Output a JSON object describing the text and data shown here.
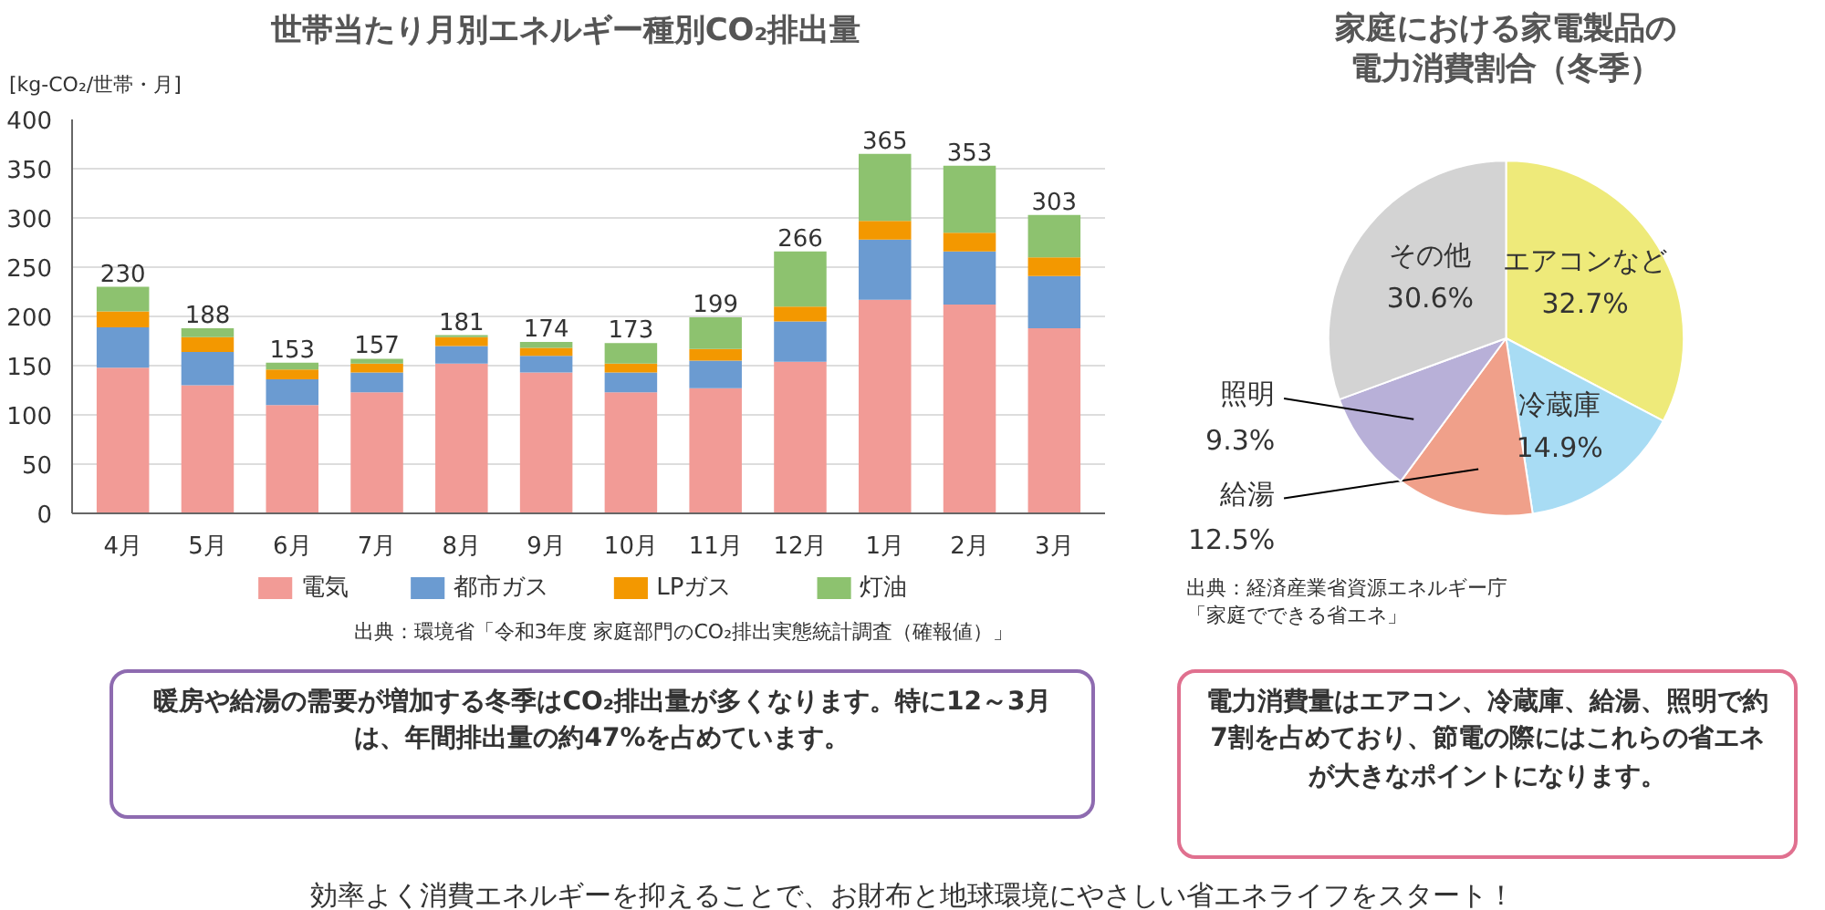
{
  "chart_data": [
    {
      "type": "bar",
      "title": "世帯当たり月別エネルギー種別CO₂排出量",
      "ylabel": "[kg-CO₂/世帯・月]",
      "categories": [
        "4月",
        "5月",
        "6月",
        "7月",
        "8月",
        "9月",
        "10月",
        "11月",
        "12月",
        "1月",
        "2月",
        "3月"
      ],
      "stacked": true,
      "series": [
        {
          "name": "電気",
          "color": "#f29b96",
          "values": [
            148,
            130,
            110,
            123,
            152,
            143,
            123,
            127,
            154,
            217,
            212,
            188
          ]
        },
        {
          "name": "都市ガス",
          "color": "#6b9bd1",
          "values": [
            41,
            34,
            26,
            20,
            18,
            17,
            20,
            28,
            41,
            61,
            54,
            53
          ]
        },
        {
          "name": "LPガス",
          "color": "#f39800",
          "values": [
            16,
            15,
            10,
            9,
            9,
            8,
            9,
            12,
            15,
            19,
            19,
            19
          ]
        },
        {
          "name": "灯油",
          "color": "#8dc26f",
          "values": [
            25,
            9,
            7,
            5,
            2,
            6,
            21,
            32,
            56,
            68,
            68,
            43
          ]
        }
      ],
      "totals": [
        "230",
        "188",
        "153",
        "157",
        "181",
        "174",
        "173",
        "199",
        "266",
        "365",
        "353",
        "303"
      ],
      "ylim": [
        0,
        400
      ],
      "yticks": [
        0,
        50,
        100,
        150,
        200,
        250,
        300,
        350,
        400
      ],
      "grid": "y",
      "legend": "bottom",
      "annotations": [
        "出典：環境省「令和3年度 家庭部門のCO₂排出実態統計調査（確報値）」",
        "暖房や給湯の需要が増加する冬季はCO₂排出量が多くなります。特に12～3月は、年間排出量の約47%を占めています。",
        "効率よく消費エネルギーを抑えることで、お財布と地球環境にやさしい省エネライフをスタート！"
      ]
    },
    {
      "type": "pie",
      "title": "家庭における家電製品の電力消費割合（冬季）",
      "categories": [
        "エアコンなど",
        "冷蔵庫",
        "給湯",
        "照明",
        "その他"
      ],
      "values": [
        32.7,
        14.9,
        12.5,
        9.3,
        30.6
      ],
      "colors": [
        "#eeea7a",
        "#a8dcf4",
        "#f0a08a",
        "#b8b0d8",
        "#d3d3d3"
      ],
      "value_labels": [
        "32.7%",
        "14.9%",
        "12.5%",
        "9.3%",
        "30.6%"
      ],
      "annotations": [
        "出典：経済産業省資源エネルギー庁「家庭でできる省エネ」",
        "電力消費量はエアコン、冷蔵庫、給湯、照明で約7割を占めており、節電の際にはこれらの省エネが大きなポイントになります。"
      ]
    }
  ]
}
